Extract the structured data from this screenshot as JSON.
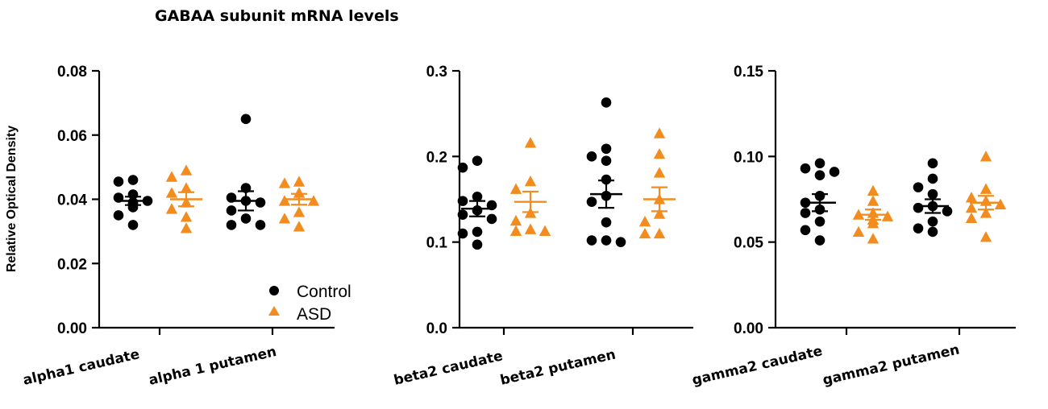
{
  "figure_title": "GABAA subunit mRNA levels",
  "y_axis_label": "Relative Optical Density",
  "colors": {
    "control": "#000000",
    "asd": "#f28c1e",
    "axis": "#000000"
  },
  "legend": [
    {
      "name": "Control",
      "marker": "circle",
      "color": "#000000"
    },
    {
      "name": "ASD",
      "marker": "triangle",
      "color": "#f28c1e"
    }
  ],
  "chart_data": [
    {
      "type": "scatter",
      "title": "",
      "ylabel": "Relative Optical Density",
      "ylim": [
        0,
        0.08
      ],
      "yticks": [
        0.0,
        0.02,
        0.04,
        0.06,
        0.08
      ],
      "ytick_labels": [
        "0.00",
        "0.02",
        "0.04",
        "0.06",
        "0.08"
      ],
      "categories": [
        "alpha1 caudate",
        "alpha 1 putamen"
      ],
      "series": [
        {
          "name": "Control",
          "group": 0,
          "mean": 0.0395,
          "sem": 0.0013,
          "values": [
            0.046,
            0.0455,
            0.0415,
            0.0405,
            0.0395,
            0.039,
            0.0385,
            0.0375,
            0.035,
            0.032
          ]
        },
        {
          "name": "ASD",
          "group": 0,
          "mean": 0.04,
          "sem": 0.0022,
          "values": [
            0.049,
            0.047,
            0.0435,
            0.042,
            0.039,
            0.037,
            0.0345,
            0.031
          ]
        },
        {
          "name": "Control",
          "group": 1,
          "mean": 0.0395,
          "sem": 0.003,
          "values": [
            0.065,
            0.0435,
            0.0405,
            0.0395,
            0.039,
            0.0365,
            0.034,
            0.032,
            0.032
          ]
        },
        {
          "name": "ASD",
          "group": 1,
          "mean": 0.04,
          "sem": 0.0017,
          "values": [
            0.0455,
            0.045,
            0.042,
            0.0395,
            0.0395,
            0.036,
            0.034,
            0.0315
          ]
        }
      ]
    },
    {
      "type": "scatter",
      "title": "",
      "ylabel": "",
      "ylim": [
        0,
        0.3
      ],
      "yticks": [
        0.0,
        0.1,
        0.2,
        0.3
      ],
      "ytick_labels": [
        "0.0",
        "0.1",
        "0.2",
        "0.3"
      ],
      "categories": [
        "beta2 caudate",
        "beta2 putamen"
      ],
      "series": [
        {
          "name": "Control",
          "group": 0,
          "mean": 0.139,
          "sem": 0.009,
          "values": [
            0.195,
            0.187,
            0.153,
            0.148,
            0.143,
            0.137,
            0.132,
            0.127,
            0.112,
            0.11,
            0.097
          ]
        },
        {
          "name": "ASD",
          "group": 0,
          "mean": 0.147,
          "sem": 0.012,
          "values": [
            0.216,
            0.171,
            0.162,
            0.134,
            0.125,
            0.115,
            0.113,
            0.113
          ]
        },
        {
          "name": "Control",
          "group": 1,
          "mean": 0.156,
          "sem": 0.016,
          "values": [
            0.263,
            0.209,
            0.2,
            0.195,
            0.173,
            0.154,
            0.147,
            0.123,
            0.102,
            0.102,
            0.1
          ]
        },
        {
          "name": "ASD",
          "group": 1,
          "mean": 0.15,
          "sem": 0.014,
          "values": [
            0.227,
            0.203,
            0.181,
            0.15,
            0.133,
            0.124,
            0.11,
            0.11
          ]
        }
      ]
    },
    {
      "type": "scatter",
      "title": "",
      "ylabel": "",
      "ylim": [
        0,
        0.15
      ],
      "yticks": [
        0.0,
        0.05,
        0.1,
        0.15
      ],
      "ytick_labels": [
        "0.00",
        "0.05",
        "0.10",
        "0.15"
      ],
      "categories": [
        "gamma2 caudate",
        "gamma2 putamen"
      ],
      "series": [
        {
          "name": "Control",
          "group": 0,
          "mean": 0.073,
          "sem": 0.005,
          "values": [
            0.096,
            0.093,
            0.091,
            0.089,
            0.077,
            0.073,
            0.069,
            0.067,
            0.062,
            0.057,
            0.051
          ]
        },
        {
          "name": "ASD",
          "group": 0,
          "mean": 0.066,
          "sem": 0.003,
          "values": [
            0.08,
            0.074,
            0.067,
            0.066,
            0.065,
            0.063,
            0.061,
            0.056,
            0.052
          ]
        },
        {
          "name": "Control",
          "group": 1,
          "mean": 0.071,
          "sem": 0.004,
          "values": [
            0.096,
            0.087,
            0.082,
            0.078,
            0.071,
            0.07,
            0.068,
            0.062,
            0.058,
            0.056
          ]
        },
        {
          "name": "ASD",
          "group": 1,
          "mean": 0.073,
          "sem": 0.004,
          "values": [
            0.1,
            0.081,
            0.076,
            0.074,
            0.072,
            0.07,
            0.067,
            0.064,
            0.053
          ]
        }
      ]
    }
  ]
}
